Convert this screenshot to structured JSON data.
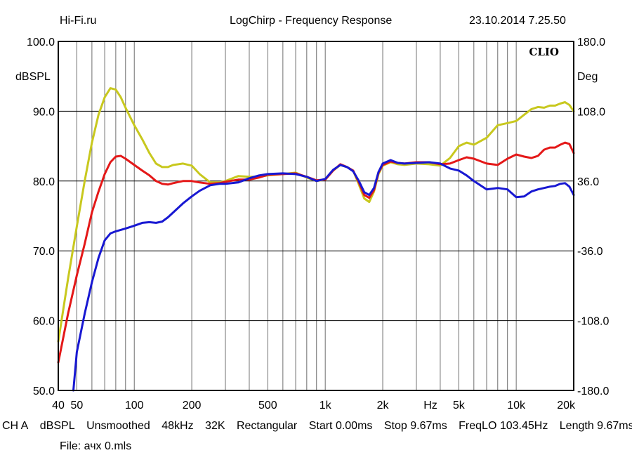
{
  "header": {
    "left": "Hi-Fi.ru",
    "center": "LogChirp - Frequency Response",
    "right": "23.10.2014 7.25.50"
  },
  "chart_data": {
    "type": "line",
    "title": "LogChirp - Frequency Response",
    "brand_label": "CLIO",
    "x_scale": "log",
    "xlim": [
      40,
      20000
    ],
    "ylim": [
      50,
      100
    ],
    "ylim_right": [
      -180,
      180
    ],
    "ylabel": "dBSPL",
    "ylabel_right": "Deg",
    "xlabel": "Hz",
    "grid": true,
    "x_ticks": [
      {
        "value": 40,
        "label": "40"
      },
      {
        "value": 50,
        "label": "50"
      },
      {
        "value": 100,
        "label": "100"
      },
      {
        "value": 200,
        "label": "200"
      },
      {
        "value": 500,
        "label": "500"
      },
      {
        "value": 1000,
        "label": "1k"
      },
      {
        "value": 2000,
        "label": "2k"
      },
      {
        "value": 5000,
        "label": "5k"
      },
      {
        "value": 10000,
        "label": "10k"
      },
      {
        "value": 20000,
        "label": "20k"
      }
    ],
    "y_ticks_left": [
      {
        "value": 100,
        "label": "100.0"
      },
      {
        "value": 90,
        "label": "90.0"
      },
      {
        "value": 80,
        "label": "80.0"
      },
      {
        "value": 70,
        "label": "70.0"
      },
      {
        "value": 60,
        "label": "60.0"
      },
      {
        "value": 50,
        "label": "50.0"
      }
    ],
    "y_ticks_right": [
      {
        "value": 180,
        "label": "180.0"
      },
      {
        "value": 108,
        "label": "108.0"
      },
      {
        "value": 36,
        "label": "36.0"
      },
      {
        "value": -36,
        "label": "-36.0"
      },
      {
        "value": -108,
        "label": "-108.0"
      },
      {
        "value": -180,
        "label": "-180.0"
      }
    ],
    "series": [
      {
        "color": "#c8c81e",
        "x": [
          40,
          45,
          50,
          55,
          60,
          65,
          70,
          75,
          80,
          85,
          90,
          100,
          110,
          120,
          130,
          140,
          150,
          160,
          180,
          200,
          220,
          250,
          280,
          300,
          350,
          400,
          450,
          500,
          600,
          700,
          800,
          900,
          1000,
          1100,
          1200,
          1300,
          1400,
          1500,
          1600,
          1700,
          1800,
          1900,
          2000,
          2200,
          2400,
          2600,
          3000,
          3500,
          4000,
          4500,
          5000,
          5500,
          6000,
          7000,
          8000,
          9000,
          10000,
          11000,
          12000,
          13000,
          14000,
          15000,
          16000,
          17000,
          18000,
          19000,
          20000
        ],
        "y": [
          57,
          66,
          73.5,
          80,
          85.5,
          89.5,
          92,
          93.3,
          93.1,
          92,
          90.5,
          88,
          86,
          84,
          82.5,
          82,
          82,
          82.3,
          82.5,
          82.2,
          81,
          79.8,
          79.8,
          80,
          80.7,
          80.6,
          80.6,
          80.8,
          81,
          81.2,
          80.5,
          80,
          80.2,
          81.5,
          82.3,
          82,
          81.5,
          79.5,
          77.5,
          77,
          78.5,
          81,
          82.2,
          82.7,
          82.4,
          82.3,
          82.5,
          82.4,
          82.2,
          83.3,
          85,
          85.5,
          85.2,
          86.2,
          88,
          88.3,
          88.6,
          89.5,
          90.3,
          90.6,
          90.5,
          90.8,
          90.8,
          91.1,
          91.3,
          90.9,
          90
        ]
      },
      {
        "color": "#e41818",
        "x": [
          40,
          45,
          50,
          55,
          60,
          65,
          70,
          75,
          80,
          85,
          90,
          100,
          110,
          120,
          130,
          140,
          150,
          160,
          180,
          200,
          220,
          250,
          280,
          300,
          350,
          400,
          450,
          500,
          600,
          700,
          800,
          900,
          1000,
          1100,
          1200,
          1300,
          1400,
          1500,
          1600,
          1700,
          1800,
          1900,
          2000,
          2200,
          2400,
          2600,
          3000,
          3500,
          4000,
          4500,
          5000,
          5500,
          6000,
          7000,
          8000,
          9000,
          10000,
          11000,
          12000,
          13000,
          14000,
          15000,
          16000,
          17000,
          18000,
          19000,
          20000
        ],
        "y": [
          54,
          61,
          66.5,
          71,
          75.5,
          78.5,
          81,
          82.7,
          83.5,
          83.6,
          83.2,
          82.3,
          81.5,
          80.8,
          80,
          79.6,
          79.5,
          79.7,
          80,
          80,
          79.8,
          79.6,
          79.7,
          79.9,
          80.2,
          80.2,
          80.5,
          80.9,
          81,
          81.1,
          80.6,
          80.1,
          80.2,
          81.5,
          82.4,
          82,
          81.5,
          79.8,
          78,
          77.6,
          78.7,
          81.2,
          82.3,
          82.8,
          82.6,
          82.5,
          82.7,
          82.7,
          82.4,
          82.5,
          83,
          83.4,
          83.2,
          82.5,
          82.3,
          83.2,
          83.8,
          83.5,
          83.3,
          83.6,
          84.5,
          84.8,
          84.8,
          85.2,
          85.5,
          85.3,
          84
        ]
      },
      {
        "color": "#1818d2",
        "x": [
          48,
          50,
          55,
          60,
          65,
          70,
          75,
          80,
          90,
          100,
          110,
          120,
          130,
          140,
          150,
          160,
          180,
          200,
          220,
          250,
          280,
          300,
          350,
          400,
          450,
          500,
          600,
          700,
          800,
          900,
          1000,
          1100,
          1200,
          1300,
          1400,
          1500,
          1600,
          1700,
          1800,
          1900,
          2000,
          2200,
          2400,
          2600,
          3000,
          3500,
          4000,
          4500,
          5000,
          5500,
          6000,
          7000,
          8000,
          9000,
          10000,
          11000,
          12000,
          13000,
          14000,
          15000,
          16000,
          17000,
          18000,
          19000,
          20000
        ],
        "y": [
          50,
          55.5,
          61,
          65.5,
          69,
          71.5,
          72.5,
          72.8,
          73.2,
          73.6,
          74,
          74.1,
          74,
          74.2,
          74.8,
          75.5,
          76.8,
          77.8,
          78.6,
          79.4,
          79.6,
          79.6,
          79.8,
          80.4,
          80.8,
          81,
          81.1,
          81,
          80.6,
          80,
          80.3,
          81.6,
          82.3,
          82,
          81.4,
          80,
          78.4,
          78,
          79,
          81.3,
          82.5,
          83,
          82.6,
          82.5,
          82.6,
          82.7,
          82.5,
          81.8,
          81.5,
          80.8,
          80,
          78.8,
          79,
          78.8,
          77.7,
          77.8,
          78.5,
          78.8,
          79,
          79.2,
          79.3,
          79.6,
          79.7,
          79.2,
          78
        ]
      }
    ]
  },
  "info": {
    "channel": "CH A",
    "unit": "dBSPL",
    "smoothing": "Unsmoothed",
    "sample_rate": "48kHz",
    "size": "32K",
    "window": "Rectangular",
    "start": "Start 0.00ms",
    "stop": "Stop 9.67ms",
    "freq_lo": "FreqLO 103.45Hz",
    "length": "Length 9.67ms"
  },
  "file": "File: ачх 0.mls"
}
